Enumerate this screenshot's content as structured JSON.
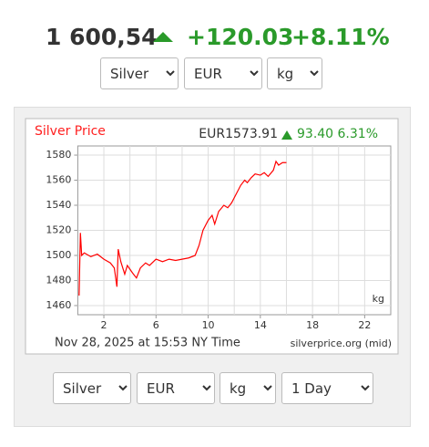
{
  "header": {
    "price": "1 600,54",
    "change": "+120.03",
    "change_pct": "+8.11%"
  },
  "top_selects": [
    "Silver",
    "EUR",
    "kg"
  ],
  "chart_data": {
    "type": "line",
    "title": "Silver Price",
    "quote": "EUR1573.91",
    "quote_change": "93.40 6.31%",
    "unit": "kg",
    "timestamp": "Nov 28, 2025 at 15:53 NY Time",
    "source": "silverprice.org (mid)",
    "x": [
      0.1,
      0.2,
      0.3,
      0.5,
      1,
      1.5,
      2,
      2.5,
      2.8,
      3.0,
      3.1,
      3.3,
      3.6,
      3.8,
      4.2,
      4.5,
      4.8,
      5.2,
      5.5,
      6,
      6.5,
      7,
      7.5,
      8,
      8.5,
      9,
      9.3,
      9.6,
      10,
      10.3,
      10.5,
      10.8,
      11.2,
      11.5,
      11.8,
      12.2,
      12.5,
      12.8,
      13,
      13.3,
      13.6,
      14,
      14.3,
      14.6,
      15,
      15.2,
      15.4,
      15.7,
      16
    ],
    "series": [
      {
        "color": "#ff0000",
        "values": [
          1468,
          1518,
          1500,
          1502,
          1499,
          1501,
          1497,
          1494,
          1490,
          1475,
          1505,
          1495,
          1485,
          1492,
          1486,
          1482,
          1490,
          1494,
          1492,
          1497,
          1495,
          1497,
          1496,
          1497,
          1498,
          1500,
          1508,
          1520,
          1528,
          1532,
          1525,
          1535,
          1540,
          1538,
          1542,
          1550,
          1556,
          1560,
          1558,
          1562,
          1565,
          1564,
          1566,
          1563,
          1568,
          1575,
          1572,
          1574,
          1574
        ]
      }
    ],
    "xlim": [
      0,
      24
    ],
    "xticks": [
      2,
      6,
      10,
      14,
      18,
      22
    ],
    "x_gridlines": [
      4,
      8,
      12,
      16,
      20
    ],
    "ylim": [
      1452.7,
      1587.3
    ],
    "yticks": [
      1460,
      1480,
      1500,
      1520,
      1540,
      1560,
      1580
    ],
    "grid": true
  },
  "bottom_selects": [
    "Silver",
    "EUR",
    "kg",
    "1 Day"
  ]
}
